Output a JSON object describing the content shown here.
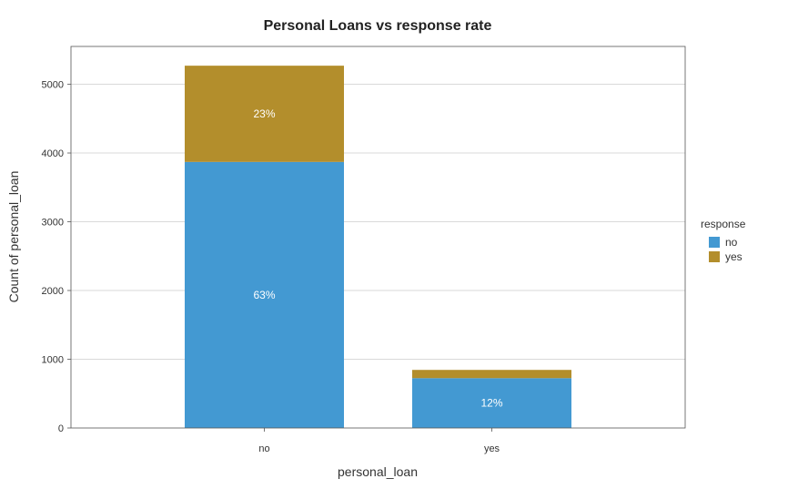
{
  "chart_data": {
    "type": "bar",
    "stacked": true,
    "title": "Personal Loans vs response rate",
    "xlabel": "personal_loan",
    "ylabel": "Count of personal_loan",
    "categories": [
      "no",
      "yes"
    ],
    "series": [
      {
        "name": "no",
        "values": [
          3870,
          725
        ],
        "color": "#4399d2"
      },
      {
        "name": "yes",
        "values": [
          1400,
          120
        ],
        "color": "#b38e2c"
      }
    ],
    "data_labels": [
      {
        "category": "no",
        "series": "no",
        "text": "63%"
      },
      {
        "category": "no",
        "series": "yes",
        "text": "23%"
      },
      {
        "category": "yes",
        "series": "no",
        "text": "12%"
      }
    ],
    "ylim": [
      0,
      5550
    ],
    "yticks": [
      0,
      1000,
      2000,
      3000,
      4000,
      5000
    ],
    "grid": "horizontal",
    "legend": {
      "title": "response",
      "position": "right"
    }
  }
}
